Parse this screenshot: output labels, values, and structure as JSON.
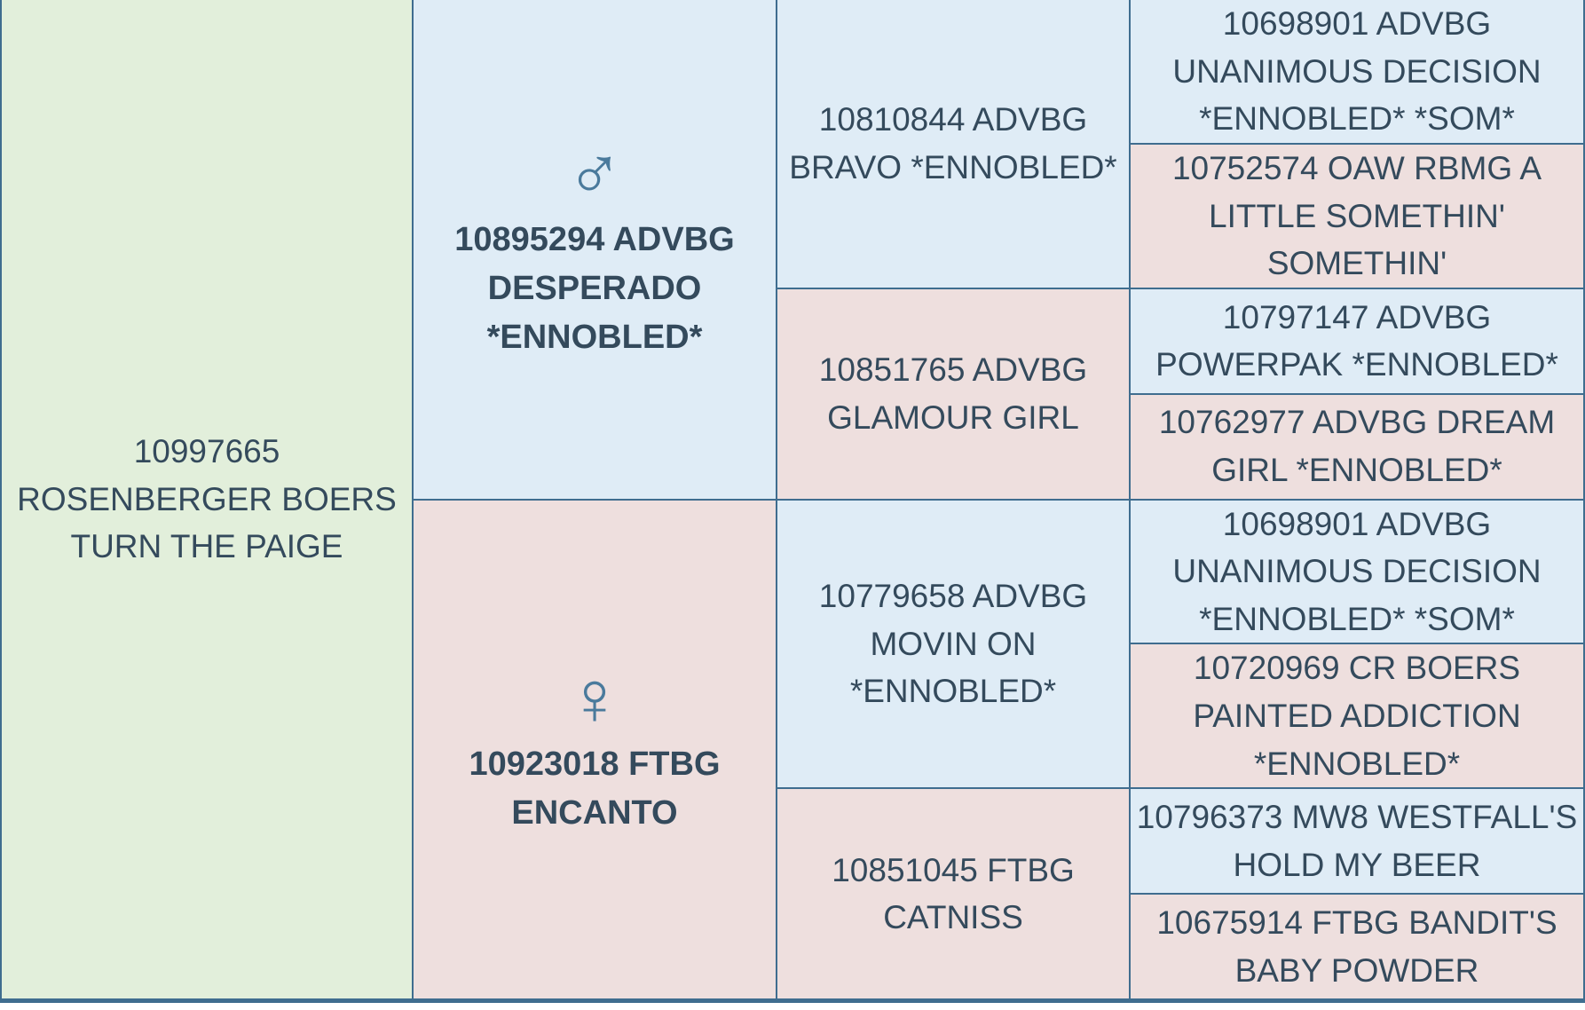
{
  "subject": {
    "name": "10997665 ROSENBERGER BOERS TURN THE PAIGE"
  },
  "sire": {
    "symbol": "♂",
    "name": "10895294 ADVBG DESPERADO *ENNOBLED*",
    "sire": {
      "name": "10810844 ADVBG BRAVO *ENNOBLED*",
      "sire": {
        "name": "10698901 ADVBG UNANIMOUS DECISION *ENNOBLED* *SOM*"
      },
      "dam": {
        "name": "10752574 OAW RBMG A LITTLE SOMETHIN' SOMETHIN'"
      }
    },
    "dam": {
      "name": "10851765 ADVBG GLAMOUR GIRL",
      "sire": {
        "name": "10797147 ADVBG POWERPAK *ENNOBLED*"
      },
      "dam": {
        "name": "10762977 ADVBG DREAM GIRL *ENNOBLED*"
      }
    }
  },
  "dam": {
    "symbol": "♀",
    "name": "10923018 FTBG ENCANTO",
    "sire": {
      "name": "10779658 ADVBG MOVIN ON *ENNOBLED*",
      "sire": {
        "name": "10698901 ADVBG UNANIMOUS DECISION *ENNOBLED* *SOM*"
      },
      "dam": {
        "name": "10720969 CR BOERS PAINTED ADDICTION *ENNOBLED*"
      }
    },
    "dam": {
      "name": "10851045 FTBG CATNISS",
      "sire": {
        "name": "10796373 MW8 WESTFALL'S HOLD MY BEER"
      },
      "dam": {
        "name": "10675914 FTBG BANDIT'S BABY POWDER"
      }
    }
  },
  "colors": {
    "male": "#dfecf6",
    "female": "#eedfde",
    "subject": "#e2efdb",
    "border": "#3f6d8f",
    "text": "#344a5c",
    "symbol": "#4a7a9c"
  }
}
